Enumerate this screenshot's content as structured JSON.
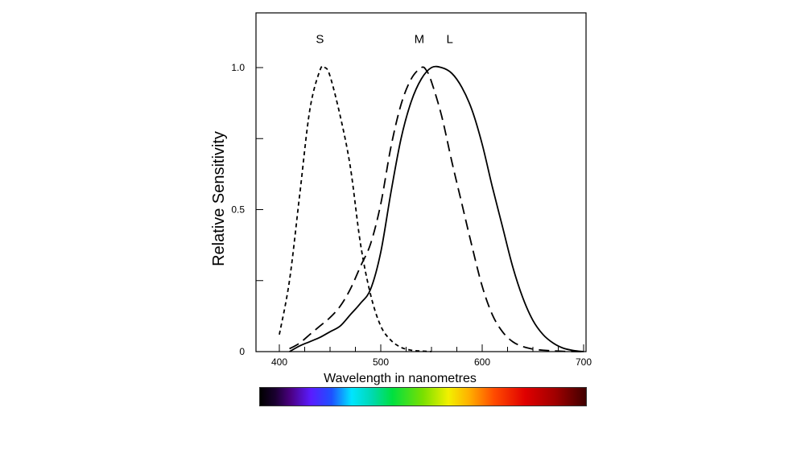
{
  "chart_data": {
    "type": "line",
    "title": "",
    "xlabel": "Wavelength in nanometres",
    "ylabel": "Relative Sensitivity",
    "xlim": [
      380,
      700
    ],
    "ylim": [
      0,
      1.2
    ],
    "x_ticks": [
      400,
      500,
      600,
      700
    ],
    "x_tick_labels": [
      "400",
      "500",
      "600",
      "700"
    ],
    "y_ticks": [
      0,
      0.25,
      0.5,
      0.75,
      1.0
    ],
    "y_tick_labels": [
      "0",
      "",
      "0.5",
      "",
      "1.0"
    ],
    "grid": false,
    "series": [
      {
        "name": "S",
        "style": "short-dash",
        "x": [
          400,
          410,
          420,
          430,
          440,
          445,
          450,
          460,
          470,
          480,
          490,
          500,
          510,
          520,
          530,
          540,
          550
        ],
        "y": [
          0.06,
          0.25,
          0.55,
          0.85,
          0.99,
          1.0,
          0.97,
          0.83,
          0.65,
          0.38,
          0.2,
          0.09,
          0.04,
          0.015,
          0.005,
          0.002,
          0.0
        ]
      },
      {
        "name": "M",
        "style": "long-dash",
        "x": [
          410,
          420,
          430,
          440,
          450,
          460,
          470,
          480,
          490,
          500,
          510,
          520,
          530,
          540,
          545,
          550,
          560,
          570,
          580,
          590,
          600,
          610,
          620,
          630,
          640,
          650,
          660,
          680,
          700
        ],
        "y": [
          0.01,
          0.03,
          0.06,
          0.09,
          0.12,
          0.16,
          0.22,
          0.3,
          0.38,
          0.52,
          0.72,
          0.87,
          0.96,
          1.0,
          0.99,
          0.95,
          0.83,
          0.67,
          0.52,
          0.37,
          0.23,
          0.13,
          0.07,
          0.035,
          0.018,
          0.009,
          0.005,
          0.001,
          0.0
        ]
      },
      {
        "name": "L",
        "style": "solid",
        "x": [
          410,
          420,
          430,
          440,
          450,
          460,
          470,
          480,
          490,
          500,
          510,
          520,
          530,
          540,
          550,
          560,
          570,
          580,
          590,
          600,
          610,
          620,
          630,
          640,
          650,
          660,
          670,
          680,
          690,
          700
        ],
        "y": [
          0.0,
          0.02,
          0.035,
          0.05,
          0.07,
          0.09,
          0.13,
          0.17,
          0.22,
          0.35,
          0.56,
          0.75,
          0.88,
          0.96,
          1.0,
          1.0,
          0.98,
          0.93,
          0.85,
          0.73,
          0.58,
          0.44,
          0.3,
          0.19,
          0.11,
          0.06,
          0.03,
          0.012,
          0.004,
          0.0
        ]
      }
    ],
    "curve_labels": [
      {
        "text": "S",
        "x": 440,
        "y": 1.1
      },
      {
        "text": "M",
        "x": 538,
        "y": 1.1
      },
      {
        "text": "L",
        "x": 568,
        "y": 1.1
      }
    ],
    "spectrum_bar": {
      "range": [
        380,
        700
      ],
      "stops": [
        {
          "wl": 380,
          "color": "#000000"
        },
        {
          "wl": 395,
          "color": "#1a0030"
        },
        {
          "wl": 410,
          "color": "#4b0082"
        },
        {
          "wl": 430,
          "color": "#5a1cff"
        },
        {
          "wl": 450,
          "color": "#1e50ff"
        },
        {
          "wl": 470,
          "color": "#00e5ff"
        },
        {
          "wl": 490,
          "color": "#00d9b0"
        },
        {
          "wl": 510,
          "color": "#00e040"
        },
        {
          "wl": 540,
          "color": "#7ae000"
        },
        {
          "wl": 565,
          "color": "#f2f000"
        },
        {
          "wl": 585,
          "color": "#ffb000"
        },
        {
          "wl": 610,
          "color": "#ff4a00"
        },
        {
          "wl": 640,
          "color": "#e00000"
        },
        {
          "wl": 670,
          "color": "#a00000"
        },
        {
          "wl": 700,
          "color": "#400000"
        }
      ]
    }
  }
}
